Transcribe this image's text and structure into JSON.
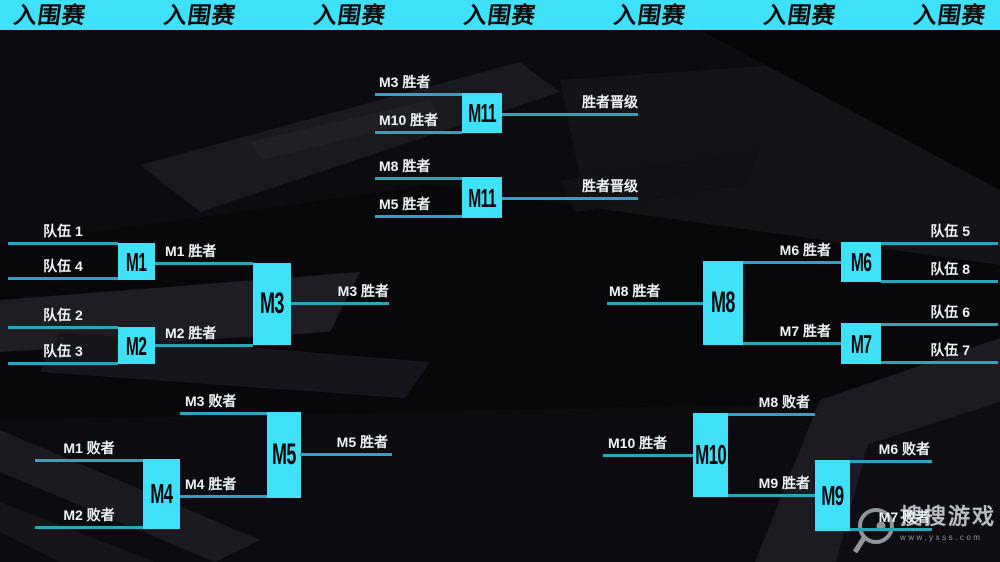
{
  "meta": {
    "accent_color": "#3ee1f7",
    "line_color": "#2ba4bf",
    "background_color": "#0c0c10",
    "label_color": "#eef4f6"
  },
  "header": {
    "items": [
      "入围赛",
      "入围赛",
      "入围赛",
      "入围赛",
      "入围赛",
      "入围赛",
      "入围赛"
    ]
  },
  "bracket": {
    "boxes": [
      {
        "id": "m1",
        "label": "M1"
      },
      {
        "id": "m2",
        "label": "M2"
      },
      {
        "id": "m3",
        "label": "M3"
      },
      {
        "id": "m4",
        "label": "M4"
      },
      {
        "id": "m5",
        "label": "M5"
      },
      {
        "id": "m6",
        "label": "M6"
      },
      {
        "id": "m7",
        "label": "M7"
      },
      {
        "id": "m8",
        "label": "M8"
      },
      {
        "id": "m9",
        "label": "M9"
      },
      {
        "id": "m10",
        "label": "M10"
      },
      {
        "id": "m11a",
        "label": "M11"
      },
      {
        "id": "m11b",
        "label": "M11"
      }
    ],
    "connectors": [
      {
        "id": "t1",
        "label": "队伍 1"
      },
      {
        "id": "t4",
        "label": "队伍 4"
      },
      {
        "id": "t2",
        "label": "队伍 2"
      },
      {
        "id": "t3",
        "label": "队伍 3"
      },
      {
        "id": "m1w",
        "label": "M1 胜者"
      },
      {
        "id": "m2w",
        "label": "M2 胜者"
      },
      {
        "id": "m3w",
        "label": "M3 胜者"
      },
      {
        "id": "f1a",
        "label": "M3 胜者"
      },
      {
        "id": "f1b",
        "label": "M10 胜者"
      },
      {
        "id": "f1o",
        "label": "胜者晋级"
      },
      {
        "id": "f2a",
        "label": "M8 胜者"
      },
      {
        "id": "f2b",
        "label": "M5 胜者"
      },
      {
        "id": "f2o",
        "label": "胜者晋级"
      },
      {
        "id": "t5",
        "label": "队伍 5"
      },
      {
        "id": "t8",
        "label": "队伍 8"
      },
      {
        "id": "t6",
        "label": "队伍 6"
      },
      {
        "id": "t7",
        "label": "队伍 7"
      },
      {
        "id": "m6w",
        "label": "M6 胜者"
      },
      {
        "id": "m7w",
        "label": "M7 胜者"
      },
      {
        "id": "m8w",
        "label": "M8 胜者"
      },
      {
        "id": "m8l",
        "label": "M8 败者"
      },
      {
        "id": "m9w",
        "label": "M9 胜者"
      },
      {
        "id": "m10w",
        "label": "M10 胜者"
      },
      {
        "id": "m6l",
        "label": "M6 败者"
      },
      {
        "id": "m7l",
        "label": "M7 败者"
      },
      {
        "id": "m3l",
        "label": "M3 败者"
      },
      {
        "id": "m4w",
        "label": "M4 胜者"
      },
      {
        "id": "m1l",
        "label": "M1 败者"
      },
      {
        "id": "m2l",
        "label": "M2 败者"
      },
      {
        "id": "m5w",
        "label": "M5 胜者"
      }
    ]
  },
  "watermark": {
    "name": "搜搜游戏",
    "url": "www.yxss.com"
  }
}
